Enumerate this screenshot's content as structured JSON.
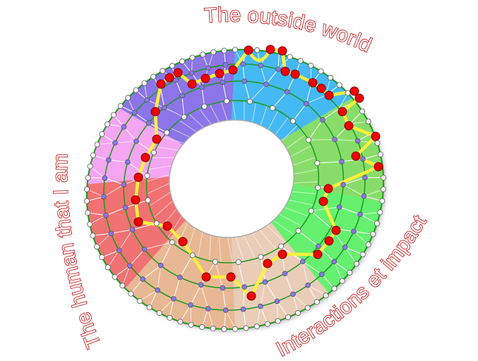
{
  "labels": {
    "top": "The outside world",
    "left": "The human that I am",
    "bottom_right": "Interactions et impact"
  },
  "colors": {
    "label_outline": "#c00000",
    "ring_lines": "#1a9a1a",
    "path": "#fff03c",
    "path_nodes": "#ee0000",
    "inner_nodes": "#8877ee",
    "sectors": {
      "purple": "#8b74e8",
      "blue": "#45b9f5",
      "light_green": "#88dd6a",
      "bright_green": "#66f070",
      "light_beige": "#eacdb8",
      "dark_beige": "#e8b894",
      "red": "#f07272",
      "pink": "#f4a6f2"
    }
  }
}
